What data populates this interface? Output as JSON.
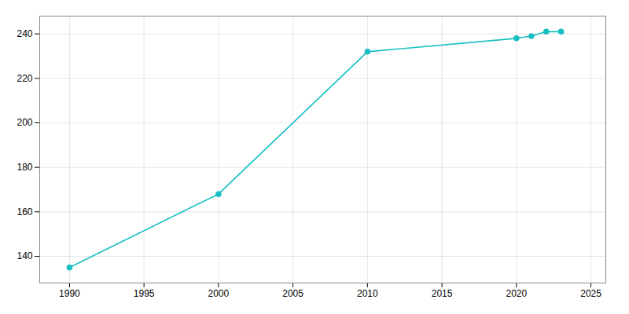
{
  "chart_data": {
    "type": "line",
    "x": [
      1990,
      2000,
      2010,
      2020,
      2021,
      2022,
      2023
    ],
    "values": [
      135,
      168,
      232,
      238,
      239,
      241,
      241
    ],
    "color": "#17BFC2",
    "marker": "circle",
    "xlim": [
      1988,
      2026
    ],
    "ylim": [
      128,
      248
    ],
    "xticks": [
      1990,
      1995,
      2000,
      2005,
      2010,
      2015,
      2020,
      2025
    ],
    "yticks": [
      140,
      160,
      180,
      200,
      220,
      240
    ],
    "grid": true
  }
}
